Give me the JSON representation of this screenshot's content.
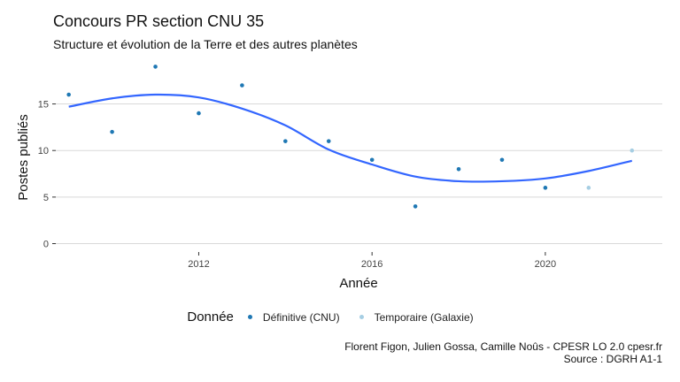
{
  "chart_data": {
    "type": "scatter",
    "title": "Concours PR section CNU 35",
    "subtitle": "Structure et évolution de la Terre et des autres planètes",
    "xlabel": "Année",
    "ylabel": "Postes publiés",
    "xlim": [
      2008.7,
      2022.7
    ],
    "ylim": [
      -0.9,
      19.8
    ],
    "x_ticks": [
      2012,
      2016,
      2020
    ],
    "y_ticks": [
      0,
      5,
      10,
      15
    ],
    "grid": true,
    "legend_position": "bottom",
    "legend_title": "Donnée",
    "series": [
      {
        "name": "Définitive (CNU)",
        "color": "#1f78b4",
        "points": [
          {
            "x": 2009,
            "y": 16
          },
          {
            "x": 2010,
            "y": 12
          },
          {
            "x": 2011,
            "y": 19
          },
          {
            "x": 2012,
            "y": 14
          },
          {
            "x": 2013,
            "y": 17
          },
          {
            "x": 2014,
            "y": 11
          },
          {
            "x": 2015,
            "y": 11
          },
          {
            "x": 2016,
            "y": 9
          },
          {
            "x": 2017,
            "y": 4
          },
          {
            "x": 2018,
            "y": 8
          },
          {
            "x": 2019,
            "y": 9
          },
          {
            "x": 2020,
            "y": 6
          }
        ]
      },
      {
        "name": "Temporaire (Galaxie)",
        "color": "#a6cee3",
        "points": [
          {
            "x": 2021,
            "y": 6
          },
          {
            "x": 2022,
            "y": 10
          }
        ]
      }
    ],
    "trend": {
      "color": "#3366ff",
      "points": [
        {
          "x": 2009,
          "y": 14.7
        },
        {
          "x": 2010,
          "y": 15.6
        },
        {
          "x": 2011,
          "y": 16.0
        },
        {
          "x": 2012,
          "y": 15.7
        },
        {
          "x": 2013,
          "y": 14.5
        },
        {
          "x": 2014,
          "y": 12.7
        },
        {
          "x": 2015,
          "y": 10.1
        },
        {
          "x": 2016,
          "y": 8.5
        },
        {
          "x": 2017,
          "y": 7.2
        },
        {
          "x": 2018,
          "y": 6.7
        },
        {
          "x": 2019,
          "y": 6.7
        },
        {
          "x": 2020,
          "y": 7.0
        },
        {
          "x": 2021,
          "y": 7.8
        },
        {
          "x": 2022,
          "y": 8.9
        }
      ]
    }
  },
  "caption": {
    "line1": "Florent Figon, Julien Gossa, Camille Noûs - CPESR LO 2.0 cpesr.fr",
    "line2": "Source : DGRH A1-1"
  }
}
